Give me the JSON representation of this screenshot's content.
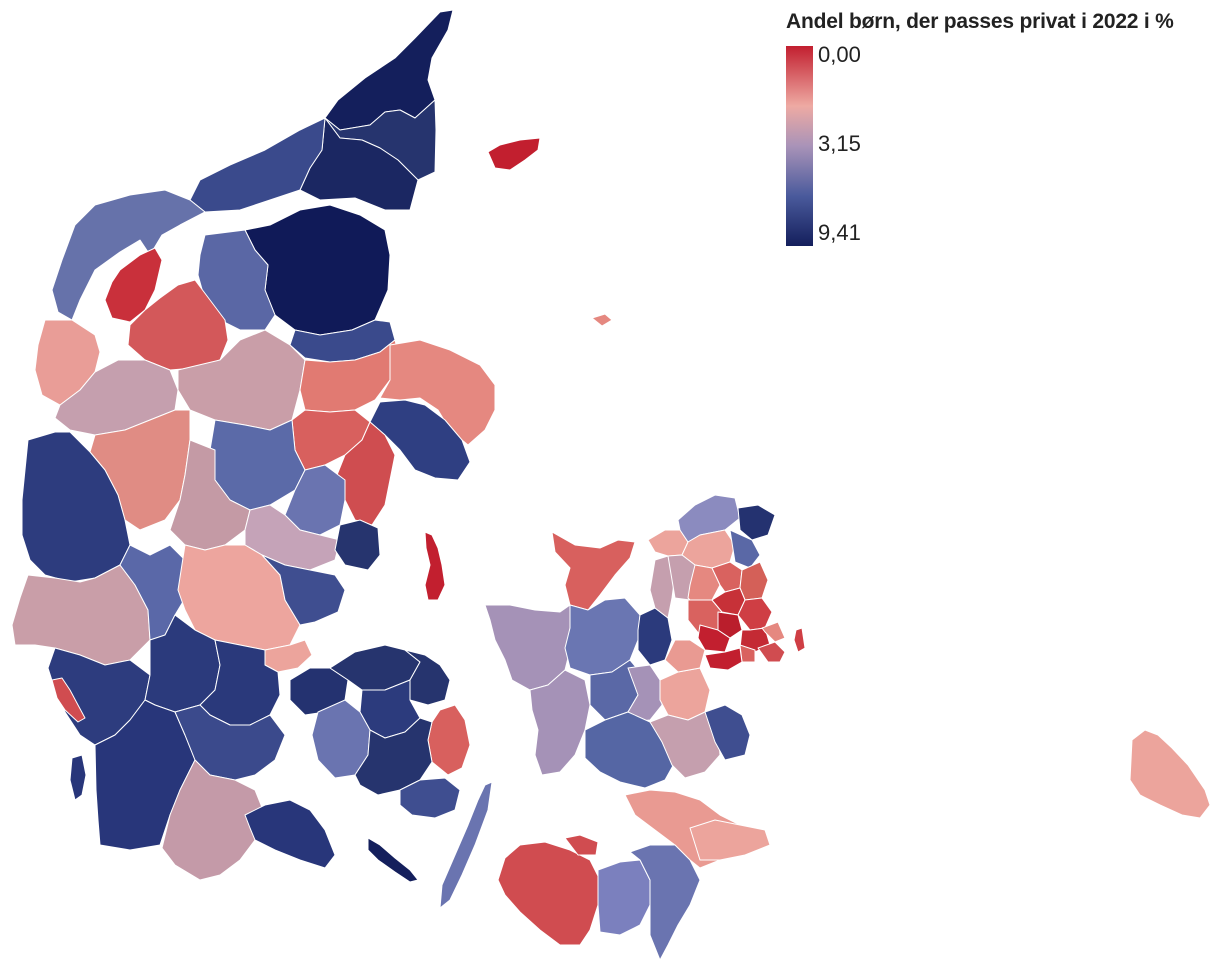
{
  "legend": {
    "title": "Andel børn, der passes privat i 2022 i %",
    "ticks": [
      "0,00",
      "3,15",
      "9,41"
    ],
    "colors": {
      "low": "#c21f2f",
      "mid_low": "#eeaaa3",
      "mid": "#a993b8",
      "mid_high": "#4a5a9c",
      "high": "#141f5c"
    }
  }
}
